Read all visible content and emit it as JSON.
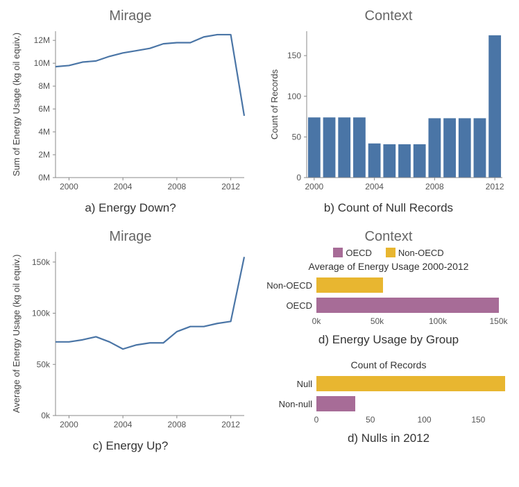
{
  "colors": {
    "series_blue": "#4a75a6",
    "purple": "#a76c97",
    "yellow": "#e8b630",
    "grid": "#cccccc",
    "axis": "#888888",
    "text": "#333333",
    "subtext": "#666666",
    "background": "#ffffff"
  },
  "panel_a": {
    "type": "line",
    "title": "Mirage",
    "caption": "a) Energy Down?",
    "ylabel": "Sum of Energy Usage  (kg oil equiv.)",
    "years": [
      1999,
      2000,
      2001,
      2002,
      2003,
      2004,
      2005,
      2006,
      2007,
      2008,
      2009,
      2010,
      2011,
      2012,
      2013
    ],
    "values": [
      9.7,
      9.8,
      10.1,
      10.2,
      10.6,
      10.9,
      11.1,
      11.3,
      11.7,
      11.8,
      11.8,
      12.3,
      12.5,
      12.5,
      5.4
    ],
    "ylim": [
      0,
      12.8
    ],
    "yticks": [
      0,
      2,
      4,
      6,
      8,
      10,
      12
    ],
    "ytick_labels": [
      "0M",
      "2M",
      "4M",
      "6M",
      "8M",
      "10M",
      "12M"
    ],
    "xticks": [
      2000,
      2004,
      2008,
      2012
    ],
    "line_width": 2.2
  },
  "panel_b": {
    "type": "bar",
    "title": "Context",
    "caption": "b) Count of Null Records",
    "ylabel": "Count of Records",
    "years": [
      2000,
      2001,
      2002,
      2003,
      2004,
      2005,
      2006,
      2007,
      2008,
      2009,
      2010,
      2011,
      2012
    ],
    "values": [
      74,
      74,
      74,
      74,
      42,
      41,
      41,
      41,
      73,
      73,
      73,
      73,
      175
    ],
    "ylim": [
      0,
      180
    ],
    "yticks": [
      0,
      50,
      100,
      150
    ],
    "xticks": [
      2000,
      2004,
      2008,
      2012
    ],
    "bar_width": 0.82
  },
  "panel_c": {
    "type": "line",
    "title": "Mirage",
    "caption": "c) Energy Up?",
    "ylabel": "Average of Energy Usage  (kg oil equiv.)",
    "years": [
      1999,
      2000,
      2001,
      2002,
      2003,
      2004,
      2005,
      2006,
      2007,
      2008,
      2009,
      2010,
      2011,
      2012,
      2013
    ],
    "values": [
      72,
      72,
      74,
      77,
      72,
      65,
      69,
      71,
      71,
      82,
      87,
      87,
      90,
      92,
      155
    ],
    "ylim": [
      0,
      160
    ],
    "yticks": [
      0,
      50,
      100,
      150
    ],
    "ytick_labels": [
      "0k",
      "50k",
      "100k",
      "150k"
    ],
    "xticks": [
      2000,
      2004,
      2008,
      2012
    ],
    "line_width": 2.2
  },
  "panel_d1": {
    "title": "Context",
    "legend": [
      {
        "label": "OECD",
        "color": "#a76c97"
      },
      {
        "label": "Non-OECD",
        "color": "#e8b630"
      }
    ],
    "subhead": "Average of Energy Usage 2000-2012",
    "caption": "d) Energy Usage by Group",
    "rows": [
      {
        "label": "Non-OECD",
        "value": 55,
        "color": "#e8b630"
      },
      {
        "label": "OECD",
        "value": 150,
        "color": "#a76c97"
      }
    ],
    "xlim": [
      0,
      160
    ],
    "xticks": [
      0,
      50,
      100,
      150
    ],
    "xtick_labels": [
      "0k",
      "50k",
      "100k",
      "150k"
    ]
  },
  "panel_d2": {
    "subhead": "Count of Records",
    "caption": "d) Nulls in 2012",
    "rows": [
      {
        "label": "Null",
        "value": 175,
        "color": "#e8b630"
      },
      {
        "label": "Non-null",
        "value": 36,
        "color": "#a76c97"
      }
    ],
    "xlim": [
      0,
      180
    ],
    "xticks": [
      0,
      50,
      100,
      150
    ],
    "xtick_labels": [
      "0",
      "50",
      "100",
      "150"
    ]
  }
}
